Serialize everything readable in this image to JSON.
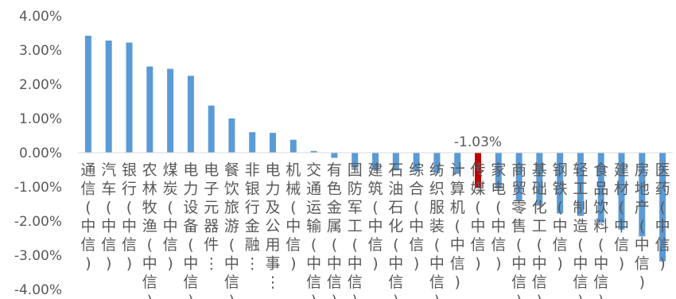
{
  "chart_data": {
    "type": "bar",
    "title": "",
    "xlabel": "",
    "ylabel": "",
    "ylim": [
      -4,
      4
    ],
    "yticks": [
      "4.00%",
      "3.00%",
      "2.00%",
      "1.00%",
      "0.00%",
      "-1.00%",
      "-2.00%",
      "-3.00%",
      "-4.00%"
    ],
    "grid": false,
    "legend": "none",
    "categories": [
      "通信(中信)",
      "汽车(中信)",
      "银行(中信)",
      "农林牧渔(中信)",
      "煤炭(中信)",
      "电力设备(中信)",
      "电子元器件…",
      "餐饮旅游(中信)",
      "非银行金融…",
      "电力及公用事…",
      "机械(中信)",
      "交通运输(中信)",
      "有色金属(中信)",
      "国防军工(中信)",
      "建筑(中信)",
      "石油石化(中信)",
      "综合(中信)",
      "纺织服装(中信)",
      "计算机(中信)",
      "传媒(中信)",
      "家电(中信)",
      "商贸零售(中信)",
      "基础化工(中信)",
      "钢铁(中信)",
      "轻工制造(中信)",
      "食品饮料(中信)",
      "建材(中信)",
      "房地产(中信)",
      "医药(中信)"
    ],
    "values": [
      3.42,
      3.28,
      3.22,
      2.52,
      2.45,
      2.25,
      1.38,
      1.0,
      0.6,
      0.58,
      0.38,
      0.05,
      -0.15,
      -0.45,
      -0.5,
      -0.52,
      -0.55,
      -0.6,
      -0.62,
      -1.03,
      -1.05,
      -1.4,
      -1.55,
      -1.78,
      -1.85,
      -2.05,
      -2.25,
      -2.45,
      -3.18
    ],
    "highlight_index": 19,
    "data_labels": [
      {
        "index": 19,
        "text": "-1.03%"
      }
    ],
    "colors": {
      "bar": "#5B9BD5",
      "highlight": "#C00000",
      "text": "#595959",
      "axis": "#D9D9D9"
    }
  }
}
